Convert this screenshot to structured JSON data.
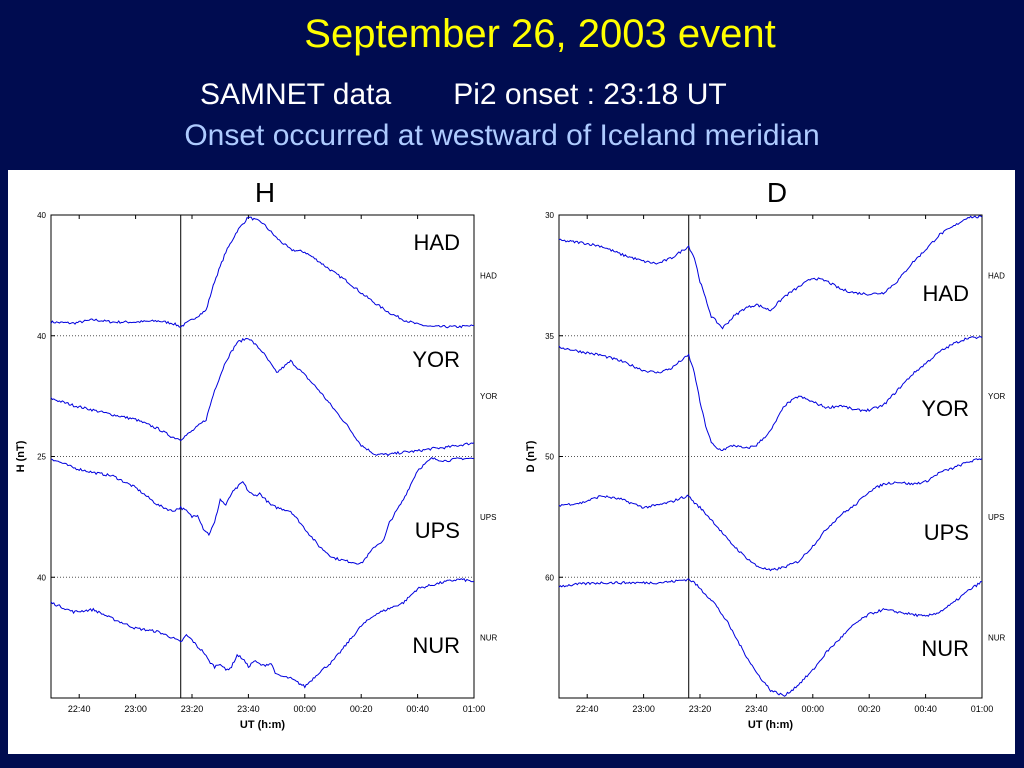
{
  "header": {
    "title": "September 26, 2003 event",
    "source": "SAMNET data",
    "onset": "Pi2 onset :  23:18 UT",
    "note": "Onset occurred at westward of Iceland meridian"
  },
  "colors": {
    "background": "#000c50",
    "title": "#ffff00",
    "note": "#aecbff",
    "trace": "#0000dd"
  },
  "chart_data": [
    {
      "type": "line",
      "component_title": "H",
      "ylabel": "H (nT)",
      "xlabel": "UT (h:m)",
      "xticks": [
        "22:40",
        "23:00",
        "23:20",
        "23:40",
        "00:00",
        "00:20",
        "00:40",
        "01:00"
      ],
      "x_range_minutes": [
        0,
        150
      ],
      "onset_marker_minute": 46,
      "offset_ticks": [
        "40",
        "40",
        "25",
        "40"
      ],
      "series": [
        {
          "name": "HAD",
          "right_label": "HAD",
          "x": [
            0,
            8,
            15,
            22,
            30,
            38,
            43,
            46,
            50,
            55,
            58,
            62,
            66,
            70,
            75,
            80,
            85,
            90,
            95,
            100,
            105,
            110,
            115,
            120,
            125,
            130,
            135,
            140,
            145,
            150
          ],
          "y": [
            10,
            9,
            12,
            10,
            10,
            11,
            9,
            6,
            12,
            20,
            45,
            70,
            88,
            100,
            95,
            82,
            72,
            70,
            62,
            53,
            45,
            35,
            26,
            18,
            12,
            8,
            6,
            6,
            6,
            7
          ]
        },
        {
          "name": "YOR",
          "right_label": "YOR",
          "x": [
            0,
            8,
            15,
            22,
            30,
            38,
            43,
            46,
            50,
            55,
            58,
            62,
            66,
            70,
            75,
            80,
            85,
            90,
            95,
            100,
            105,
            110,
            115,
            120,
            125,
            130,
            135,
            140,
            145,
            150
          ],
          "y": [
            48,
            42,
            38,
            34,
            30,
            22,
            15,
            13,
            20,
            30,
            55,
            80,
            96,
            100,
            88,
            70,
            80,
            68,
            55,
            40,
            25,
            8,
            0,
            0,
            2,
            3,
            5,
            6,
            8,
            10
          ]
        },
        {
          "name": "UPS",
          "right_label": "UPS",
          "x": [
            0,
            8,
            15,
            22,
            30,
            38,
            43,
            46,
            48,
            50,
            52,
            54,
            56,
            58,
            60,
            62,
            64,
            66,
            68,
            70,
            72,
            74,
            76,
            78,
            80,
            85,
            90,
            95,
            100,
            105,
            110,
            115,
            118,
            120,
            125,
            130,
            135,
            140,
            145,
            150
          ],
          "y": [
            100,
            92,
            88,
            85,
            75,
            60,
            55,
            58,
            55,
            50,
            52,
            40,
            35,
            45,
            65,
            60,
            70,
            75,
            80,
            72,
            68,
            70,
            65,
            60,
            58,
            55,
            40,
            25,
            15,
            12,
            10,
            25,
            30,
            45,
            65,
            90,
            100,
            98,
            100,
            100
          ]
        },
        {
          "name": "NUR",
          "right_label": "NUR",
          "x": [
            0,
            8,
            15,
            22,
            30,
            38,
            43,
            46,
            48,
            50,
            52,
            54,
            56,
            58,
            60,
            62,
            64,
            66,
            68,
            70,
            72,
            75,
            78,
            80,
            85,
            90,
            95,
            100,
            105,
            110,
            115,
            120,
            125,
            130,
            135,
            140,
            145,
            150
          ],
          "y": [
            80,
            72,
            74,
            66,
            58,
            55,
            50,
            46,
            52,
            48,
            42,
            38,
            30,
            25,
            28,
            22,
            25,
            35,
            32,
            25,
            30,
            26,
            28,
            18,
            15,
            8,
            20,
            30,
            45,
            60,
            70,
            75,
            80,
            92,
            95,
            98,
            100,
            98
          ]
        }
      ]
    },
    {
      "type": "line",
      "component_title": "D",
      "ylabel": "D (nT)",
      "xlabel": "UT (h:m)",
      "xticks": [
        "22:40",
        "23:00",
        "23:20",
        "23:40",
        "00:00",
        "00:20",
        "00:40",
        "01:00"
      ],
      "x_range_minutes": [
        0,
        150
      ],
      "onset_marker_minute": 46,
      "offset_ticks": [
        "30",
        "35",
        "50",
        "60"
      ],
      "series": [
        {
          "name": "HAD",
          "right_label": "HAD",
          "x": [
            0,
            8,
            15,
            22,
            30,
            35,
            40,
            43,
            46,
            48,
            50,
            52,
            54,
            56,
            58,
            62,
            66,
            70,
            75,
            80,
            85,
            90,
            95,
            100,
            105,
            110,
            115,
            120,
            125,
            130,
            135,
            140,
            145,
            150
          ],
          "y": [
            80,
            78,
            75,
            68,
            62,
            60,
            65,
            70,
            75,
            65,
            45,
            30,
            15,
            10,
            5,
            15,
            22,
            25,
            20,
            32,
            40,
            48,
            45,
            38,
            35,
            34,
            35,
            45,
            60,
            72,
            85,
            92,
            100,
            100
          ]
        },
        {
          "name": "YOR",
          "right_label": "YOR",
          "x": [
            0,
            8,
            15,
            22,
            30,
            35,
            40,
            43,
            46,
            48,
            50,
            52,
            54,
            56,
            58,
            62,
            66,
            70,
            75,
            80,
            85,
            90,
            95,
            100,
            105,
            110,
            115,
            120,
            125,
            130,
            135,
            140,
            145,
            150
          ],
          "y": [
            92,
            88,
            85,
            80,
            72,
            70,
            74,
            80,
            85,
            70,
            45,
            25,
            10,
            5,
            4,
            8,
            5,
            8,
            20,
            42,
            50,
            45,
            40,
            42,
            38,
            38,
            42,
            55,
            68,
            78,
            88,
            95,
            100,
            100
          ]
        },
        {
          "name": "UPS",
          "right_label": "UPS",
          "x": [
            0,
            8,
            15,
            22,
            30,
            35,
            40,
            43,
            46,
            48,
            50,
            55,
            60,
            65,
            70,
            75,
            80,
            85,
            90,
            95,
            100,
            105,
            110,
            115,
            120,
            125,
            130,
            135,
            140,
            145,
            150
          ],
          "y": [
            60,
            62,
            68,
            65,
            58,
            60,
            63,
            66,
            68,
            62,
            58,
            45,
            30,
            18,
            8,
            4,
            7,
            12,
            25,
            40,
            52,
            60,
            72,
            78,
            80,
            78,
            80,
            88,
            92,
            97,
            100
          ]
        },
        {
          "name": "NUR",
          "right_label": "NUR",
          "x": [
            0,
            8,
            15,
            22,
            30,
            35,
            40,
            43,
            46,
            48,
            50,
            55,
            60,
            65,
            70,
            75,
            80,
            85,
            90,
            95,
            100,
            105,
            110,
            115,
            120,
            125,
            130,
            135,
            140,
            145,
            150
          ],
          "y": [
            94,
            96,
            97,
            97,
            97,
            97,
            98,
            99,
            100,
            97,
            92,
            80,
            62,
            40,
            20,
            5,
            0,
            10,
            22,
            38,
            50,
            62,
            70,
            74,
            72,
            70,
            68,
            72,
            80,
            90,
            98
          ]
        }
      ]
    }
  ]
}
